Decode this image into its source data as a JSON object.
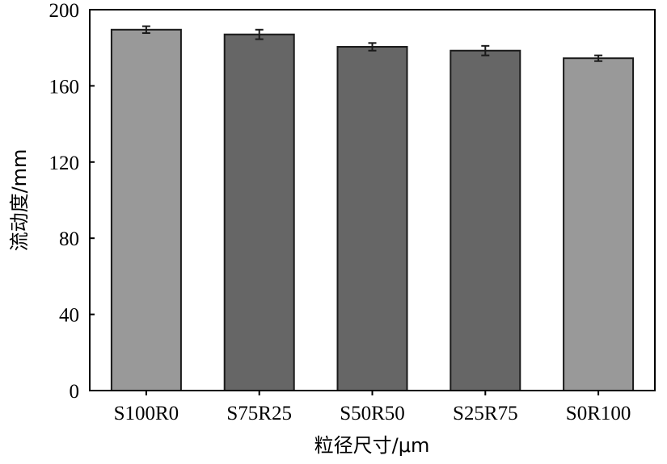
{
  "chart_data": {
    "type": "bar",
    "categories": [
      "S100R0",
      "S75R25",
      "S50R50",
      "S25R75",
      "S0R100"
    ],
    "values": [
      189.5,
      187,
      180.5,
      178.5,
      174.5
    ],
    "errors": [
      1.8,
      2.5,
      2.0,
      2.5,
      1.5
    ],
    "bar_colors": [
      "#999999",
      "#666666",
      "#666666",
      "#666666",
      "#999999"
    ],
    "xlabel": "粒径尺寸/μm",
    "ylabel": "流动度/mm",
    "ylim": [
      0,
      200
    ],
    "yticks": [
      "0",
      "40",
      "80",
      "120",
      "160",
      "200"
    ],
    "grid": false
  }
}
